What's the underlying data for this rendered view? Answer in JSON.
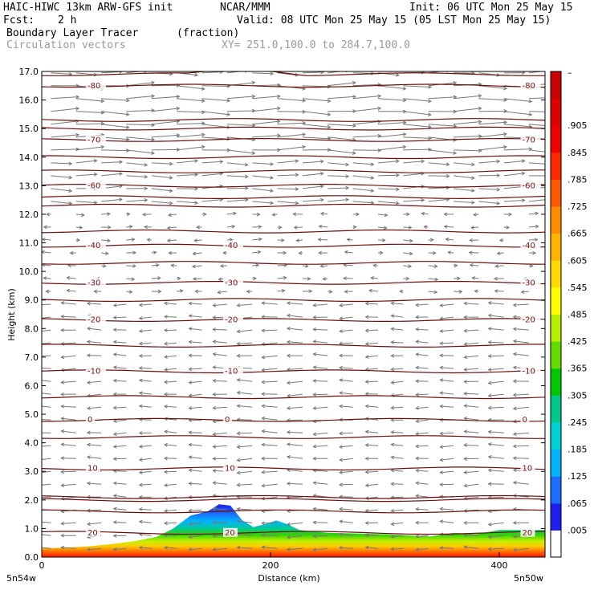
{
  "header": {
    "model": "HAIC-HIWC 13km ARW-GFS init",
    "org": "NCAR/MMM",
    "init": "Init: 06 UTC Mon 25 May 15",
    "fcst_label": "Fcst:",
    "fcst_value": "2 h",
    "valid": "Valid: 08 UTC Mon 25 May 15 (05 LST Mon 25 May 15)",
    "field": "Boundary Layer Tracer",
    "units": "(fraction)",
    "vectors": "Circulation vectors",
    "xy": "XY= 251.0,100.0 to 284.7,100.0"
  },
  "chart_data": {
    "type": "heatmap",
    "title": "Boundary Layer Tracer",
    "units": "(fraction)",
    "xlabel": "Distance (km)",
    "ylabel": "Height (km)",
    "xlim": [
      0,
      440
    ],
    "ylim": [
      0,
      17
    ],
    "x_ticks": [
      "0",
      "200",
      "400"
    ],
    "x_tick_values": [
      0,
      200,
      400
    ],
    "x_end_labels": {
      "left": "5n54w",
      "right": "5n50w"
    },
    "y_ticks": [
      "0.0",
      "1.0",
      "2.0",
      "3.0",
      "4.0",
      "5.0",
      "6.0",
      "7.0",
      "8.0",
      "9.0",
      "10.0",
      "11.0",
      "12.0",
      "13.0",
      "14.0",
      "15.0",
      "16.0",
      "17.0"
    ],
    "colorbar": {
      "labels": [
        ".005",
        ".065",
        ".125",
        ".185",
        ".245",
        ".305",
        ".365",
        ".425",
        ".485",
        ".545",
        ".605",
        ".665",
        ".725",
        ".785",
        ".845",
        ".905"
      ],
      "colors": [
        "#ffffff",
        "#1e1ef0",
        "#1a6eff",
        "#00b4ff",
        "#00d2d2",
        "#00c88c",
        "#00c800",
        "#64dc00",
        "#b4f000",
        "#ffff00",
        "#ffdc00",
        "#ffb400",
        "#ff8c00",
        "#ff5a00",
        "#ff2800",
        "#f00000",
        "#e00000",
        "#c80000"
      ],
      "top_label": "–"
    },
    "tracer_top_km": [
      [
        0,
        0.3
      ],
      [
        20,
        0.33
      ],
      [
        40,
        0.37
      ],
      [
        60,
        0.45
      ],
      [
        80,
        0.55
      ],
      [
        100,
        0.7
      ],
      [
        115,
        1.0
      ],
      [
        130,
        1.45
      ],
      [
        145,
        1.6
      ],
      [
        155,
        1.85
      ],
      [
        165,
        1.8
      ],
      [
        175,
        1.3
      ],
      [
        185,
        1.05
      ],
      [
        195,
        1.15
      ],
      [
        205,
        1.28
      ],
      [
        215,
        1.15
      ],
      [
        225,
        0.95
      ],
      [
        250,
        0.85
      ],
      [
        300,
        0.8
      ],
      [
        340,
        0.72
      ],
      [
        360,
        0.85
      ],
      [
        380,
        0.8
      ],
      [
        400,
        0.95
      ],
      [
        420,
        0.95
      ],
      [
        440,
        0.95
      ]
    ],
    "temperature_contours": [
      {
        "label": "-80",
        "height_km": 16.5
      },
      {
        "label": "-70",
        "height_km": 14.6
      },
      {
        "label": "-60",
        "height_km": 13.0
      },
      {
        "label": "-40",
        "height_km": 10.9
      },
      {
        "label": "-30",
        "height_km": 9.6
      },
      {
        "label": "-20",
        "height_km": 8.3
      },
      {
        "label": "-10",
        "height_km": 6.5
      },
      {
        "label": "0",
        "height_km": 4.8
      },
      {
        "label": "10",
        "height_km": 3.1
      },
      {
        "label": "20",
        "height_km": 0.85
      }
    ],
    "unlabeled_contour_heights_km": [
      16.9,
      15.3,
      15.0,
      14.0,
      13.5,
      12.6,
      12.3,
      11.4,
      10.3,
      9.0,
      7.4,
      5.6,
      4.2,
      2.1,
      2.0,
      1.6
    ],
    "wind_vectors": {
      "upper_level": "westerly (pointing right) above ~12 km, strongest near 15-16 km",
      "mid_level": "light and variable 9-12 km",
      "lower_level": "easterly (pointing left) below ~9 km"
    }
  }
}
